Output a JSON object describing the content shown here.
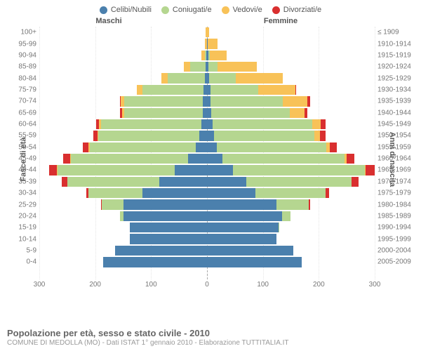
{
  "chart": {
    "type": "population-pyramid",
    "legend": [
      {
        "label": "Celibi/Nubili",
        "color": "#4b80ad"
      },
      {
        "label": "Coniugati/e",
        "color": "#b5d690"
      },
      {
        "label": "Vedovi/e",
        "color": "#f8c258"
      },
      {
        "label": "Divorziati/e",
        "color": "#d92f2f"
      }
    ],
    "header_male": "Maschi",
    "header_female": "Femmine",
    "ylabel_left": "Fasce di età",
    "ylabel_right": "Anni di nascita",
    "max_value": 300,
    "xticks": [
      300,
      200,
      100,
      0,
      100,
      200,
      300
    ],
    "background_color": "#ffffff",
    "grid_color": "#e5e5e5",
    "rows": [
      {
        "age": "100+",
        "byr": "≤ 1909",
        "m": [
          0,
          0,
          2,
          0
        ],
        "f": [
          0,
          0,
          4,
          0
        ]
      },
      {
        "age": "95-99",
        "byr": "1910-1914",
        "m": [
          0,
          0,
          4,
          0
        ],
        "f": [
          1,
          0,
          18,
          0
        ]
      },
      {
        "age": "90-94",
        "byr": "1915-1919",
        "m": [
          1,
          3,
          6,
          0
        ],
        "f": [
          2,
          3,
          30,
          0
        ]
      },
      {
        "age": "85-89",
        "byr": "1920-1924",
        "m": [
          2,
          28,
          12,
          0
        ],
        "f": [
          3,
          16,
          70,
          0
        ]
      },
      {
        "age": "80-84",
        "byr": "1925-1929",
        "m": [
          4,
          66,
          12,
          0
        ],
        "f": [
          4,
          48,
          84,
          0
        ]
      },
      {
        "age": "75-79",
        "byr": "1930-1934",
        "m": [
          6,
          110,
          10,
          0
        ],
        "f": [
          6,
          86,
          66,
          2
        ]
      },
      {
        "age": "70-74",
        "byr": "1935-1939",
        "m": [
          8,
          140,
          6,
          2
        ],
        "f": [
          6,
          130,
          44,
          4
        ]
      },
      {
        "age": "65-69",
        "byr": "1940-1944",
        "m": [
          8,
          140,
          4,
          4
        ],
        "f": [
          8,
          140,
          26,
          6
        ]
      },
      {
        "age": "60-64",
        "byr": "1945-1949",
        "m": [
          10,
          180,
          3,
          6
        ],
        "f": [
          10,
          178,
          16,
          8
        ]
      },
      {
        "age": "55-59",
        "byr": "1950-1954",
        "m": [
          14,
          180,
          2,
          8
        ],
        "f": [
          12,
          180,
          10,
          10
        ]
      },
      {
        "age": "50-54",
        "byr": "1955-1959",
        "m": [
          20,
          190,
          2,
          10
        ],
        "f": [
          18,
          196,
          6,
          12
        ]
      },
      {
        "age": "45-49",
        "byr": "1960-1964",
        "m": [
          34,
          210,
          1,
          12
        ],
        "f": [
          28,
          218,
          4,
          14
        ]
      },
      {
        "age": "40-44",
        "byr": "1965-1969",
        "m": [
          58,
          210,
          1,
          14
        ],
        "f": [
          46,
          236,
          2,
          16
        ]
      },
      {
        "age": "35-39",
        "byr": "1970-1974",
        "m": [
          86,
          164,
          0,
          10
        ],
        "f": [
          70,
          188,
          1,
          12
        ]
      },
      {
        "age": "30-34",
        "byr": "1975-1979",
        "m": [
          116,
          96,
          0,
          4
        ],
        "f": [
          86,
          126,
          0,
          6
        ]
      },
      {
        "age": "25-29",
        "byr": "1980-1984",
        "m": [
          150,
          38,
          0,
          1
        ],
        "f": [
          124,
          58,
          0,
          2
        ]
      },
      {
        "age": "20-24",
        "byr": "1985-1989",
        "m": [
          150,
          6,
          0,
          0
        ],
        "f": [
          134,
          16,
          0,
          0
        ]
      },
      {
        "age": "15-19",
        "byr": "1990-1994",
        "m": [
          138,
          0,
          0,
          0
        ],
        "f": [
          128,
          1,
          0,
          0
        ]
      },
      {
        "age": "10-14",
        "byr": "1995-1999",
        "m": [
          138,
          0,
          0,
          0
        ],
        "f": [
          124,
          0,
          0,
          0
        ]
      },
      {
        "age": "5-9",
        "byr": "2000-2004",
        "m": [
          164,
          0,
          0,
          0
        ],
        "f": [
          154,
          0,
          0,
          0
        ]
      },
      {
        "age": "0-4",
        "byr": "2005-2009",
        "m": [
          186,
          0,
          0,
          0
        ],
        "f": [
          170,
          0,
          0,
          0
        ]
      }
    ]
  },
  "footer": {
    "title": "Popolazione per età, sesso e stato civile - 2010",
    "subtitle": "COMUNE DI MEDOLLA (MO) - Dati ISTAT 1° gennaio 2010 - Elaborazione TUTTITALIA.IT"
  }
}
